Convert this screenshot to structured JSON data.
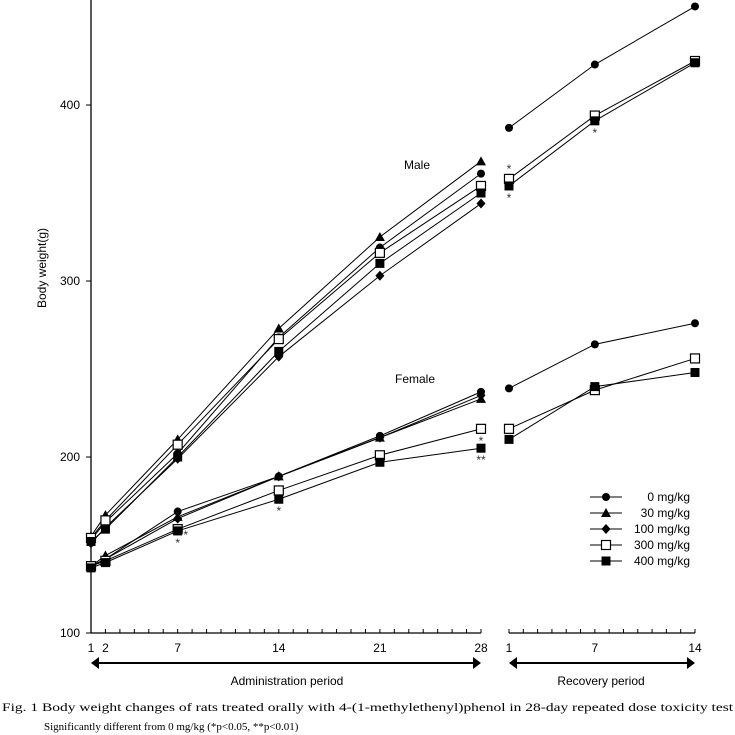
{
  "chart_data": {
    "type": "line",
    "ylabel": "Body weight(g)",
    "ylim": [
      100,
      460
    ],
    "yticks": [
      "100",
      "200",
      "300",
      "400"
    ],
    "admin_days": [
      1,
      2,
      7,
      14,
      21,
      28
    ],
    "admin_tick_labels": [
      "1",
      "2",
      "7",
      "14",
      "21",
      "28"
    ],
    "recovery_days": [
      1,
      7,
      14
    ],
    "recovery_tick_labels": [
      "1",
      "7",
      "14"
    ],
    "admin_period_label": "Administration period",
    "recovery_period_label": "Recovery period",
    "group_labels": {
      "male": "Male",
      "female": "Female"
    },
    "legend": [
      {
        "label": "0 mg/kg",
        "marker": "circle"
      },
      {
        "label": "30 mg/kg",
        "marker": "triangle"
      },
      {
        "label": "100 mg/kg",
        "marker": "diamond"
      },
      {
        "label": "300 mg/kg",
        "marker": "open-square"
      },
      {
        "label": "400 mg/kg",
        "marker": "square"
      }
    ],
    "series": [
      {
        "name": "0 mg/kg",
        "sex": "male",
        "marker": "circle",
        "admin": [
          153,
          163,
          202,
          268,
          319,
          361
        ],
        "recovery": [
          387,
          423,
          456
        ]
      },
      {
        "name": "30 mg/kg",
        "sex": "male",
        "marker": "triangle",
        "admin": [
          155,
          167,
          210,
          273,
          325,
          368
        ],
        "recovery": null
      },
      {
        "name": "100 mg/kg",
        "sex": "male",
        "marker": "diamond",
        "admin": [
          151,
          160,
          199,
          257,
          303,
          344
        ],
        "recovery": null
      },
      {
        "name": "300 mg/kg",
        "sex": "male",
        "marker": "open-square",
        "admin": [
          154,
          164,
          207,
          267,
          316,
          354
        ],
        "recovery": [
          358,
          394,
          425
        ]
      },
      {
        "name": "400 mg/kg",
        "sex": "male",
        "marker": "square",
        "admin": [
          152,
          159,
          200,
          260,
          310,
          350
        ],
        "recovery": [
          354,
          391,
          424
        ]
      },
      {
        "name": "0 mg/kg",
        "sex": "female",
        "marker": "circle",
        "admin": [
          138,
          142,
          169,
          189,
          212,
          237
        ],
        "recovery": [
          239,
          264,
          276
        ]
      },
      {
        "name": "30 mg/kg",
        "sex": "female",
        "marker": "triangle",
        "admin": [
          138,
          144,
          166,
          189,
          211,
          233
        ],
        "recovery": null
      },
      {
        "name": "100 mg/kg",
        "sex": "female",
        "marker": "diamond",
        "admin": [
          138,
          142,
          165,
          189,
          211,
          235
        ],
        "recovery": null
      },
      {
        "name": "300 mg/kg",
        "sex": "female",
        "marker": "open-square",
        "admin": [
          138,
          141,
          159,
          181,
          201,
          216
        ],
        "recovery": [
          216,
          238,
          256
        ]
      },
      {
        "name": "400 mg/kg",
        "sex": "female",
        "marker": "square",
        "admin": [
          137,
          140,
          158,
          176,
          197,
          205
        ],
        "recovery": [
          210,
          240,
          248
        ]
      }
    ],
    "significance": [
      {
        "period": "recovery",
        "day": 1,
        "value": 358,
        "mark": "*",
        "pos": "above"
      },
      {
        "period": "recovery",
        "day": 1,
        "value": 354,
        "mark": "*",
        "pos": "below"
      },
      {
        "period": "recovery",
        "day": 7,
        "value": 391,
        "mark": "*",
        "pos": "below"
      },
      {
        "period": "admin",
        "day": 7,
        "value": 159,
        "mark": "*",
        "pos": "right"
      },
      {
        "period": "admin",
        "day": 7,
        "value": 158,
        "mark": "*",
        "pos": "below"
      },
      {
        "period": "admin",
        "day": 14,
        "value": 176,
        "mark": "*",
        "pos": "below"
      },
      {
        "period": "admin",
        "day": 28,
        "value": 216,
        "mark": "*",
        "pos": "below"
      },
      {
        "period": "admin",
        "day": 28,
        "value": 205,
        "mark": "**",
        "pos": "below"
      }
    ]
  },
  "caption": {
    "title": "Fig. 1  Body weight changes of rats treated orally with 4-(1-methylethenyl)phenol in 28-day repeated dose toxicity test",
    "note": "Significantly different from 0 mg/kg (*p<0.05, **p<0.01)"
  }
}
